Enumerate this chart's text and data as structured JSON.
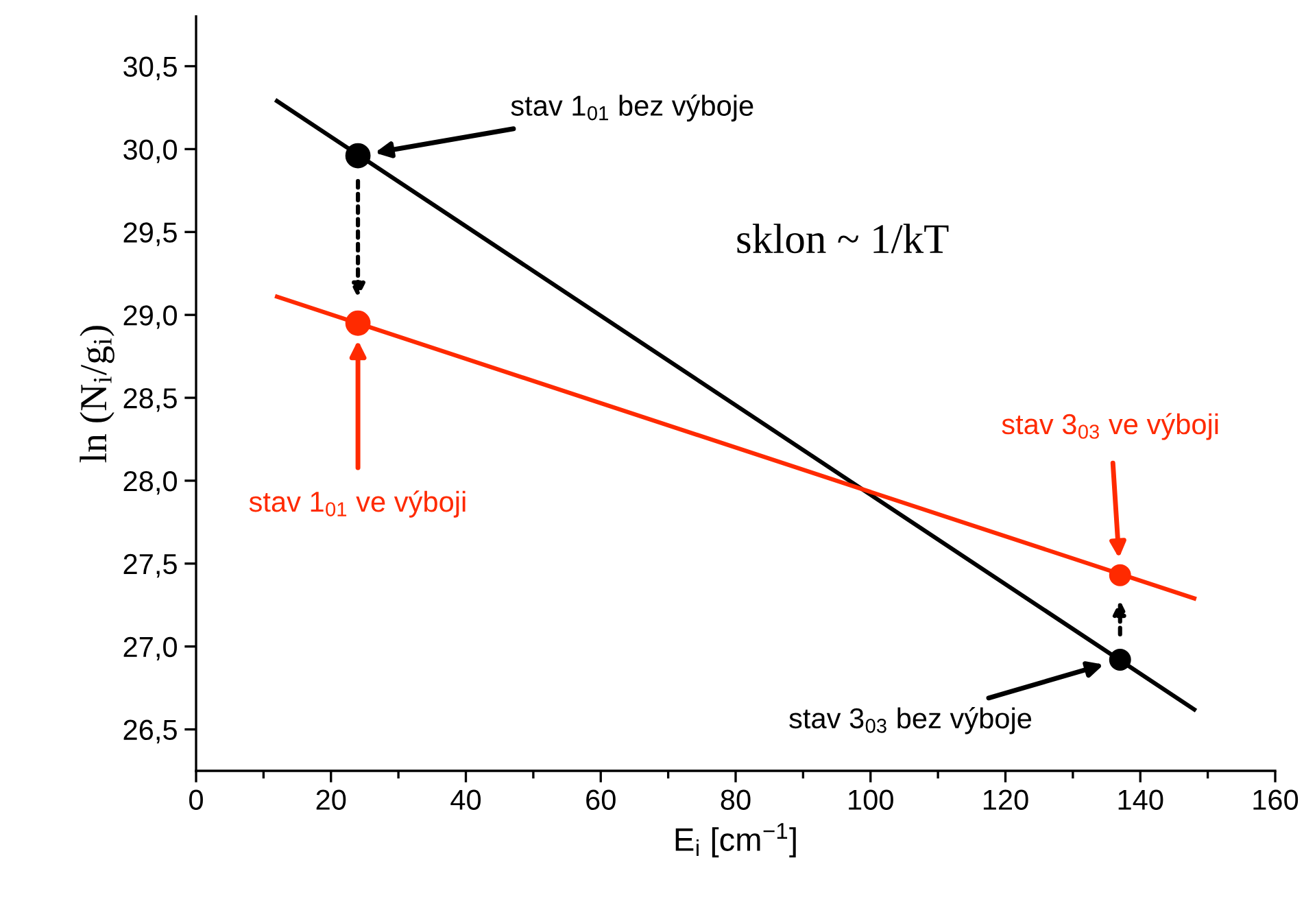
{
  "chart_data": {
    "type": "line",
    "xlabel": "E$_{i}$ [cm$^{−1}$]",
    "ylabel": "ln (N$_{i}$/g$_{i}$)",
    "xlim": [
      0,
      160
    ],
    "xticks": [
      0,
      20,
      40,
      60,
      80,
      100,
      120,
      140,
      160
    ],
    "ylim": [
      26.25,
      30.8
    ],
    "yticks": [
      {
        "value": 26.5,
        "label": "26,5"
      },
      {
        "value": 27.0,
        "label": "27,0"
      },
      {
        "value": 27.5,
        "label": "27,5"
      },
      {
        "value": 28.0,
        "label": "28,0"
      },
      {
        "value": 28.5,
        "label": "28,5"
      },
      {
        "value": 29.0,
        "label": "29,0"
      },
      {
        "value": 29.5,
        "label": "29,5"
      },
      {
        "value": 30.0,
        "label": "30,0"
      },
      {
        "value": 30.5,
        "label": "30,5"
      }
    ],
    "grid": false,
    "series": [
      {
        "color": "#000000",
        "x": [
          12,
          148
        ],
        "values": [
          30.29,
          26.62
        ]
      },
      {
        "color": "#ff2a00",
        "x": [
          12,
          148
        ],
        "values": [
          29.11,
          27.29
        ]
      },
      {
        "type": "scatter",
        "color": "#000000",
        "x": [
          24,
          137
        ],
        "values": [
          29.96,
          26.92
        ]
      },
      {
        "type": "scatter",
        "color": "#ff2a00",
        "x": [
          24,
          137
        ],
        "values": [
          28.95,
          27.43
        ]
      }
    ],
    "annotations": [
      "stav 1$_{01}$ bez výboje",
      "stav 1$_{01}$ ve výboji",
      "stav 3$_{03}$ ve výboji",
      "stav 3$_{03}$ bez výboje",
      "sklon ~ 1/kT"
    ]
  }
}
